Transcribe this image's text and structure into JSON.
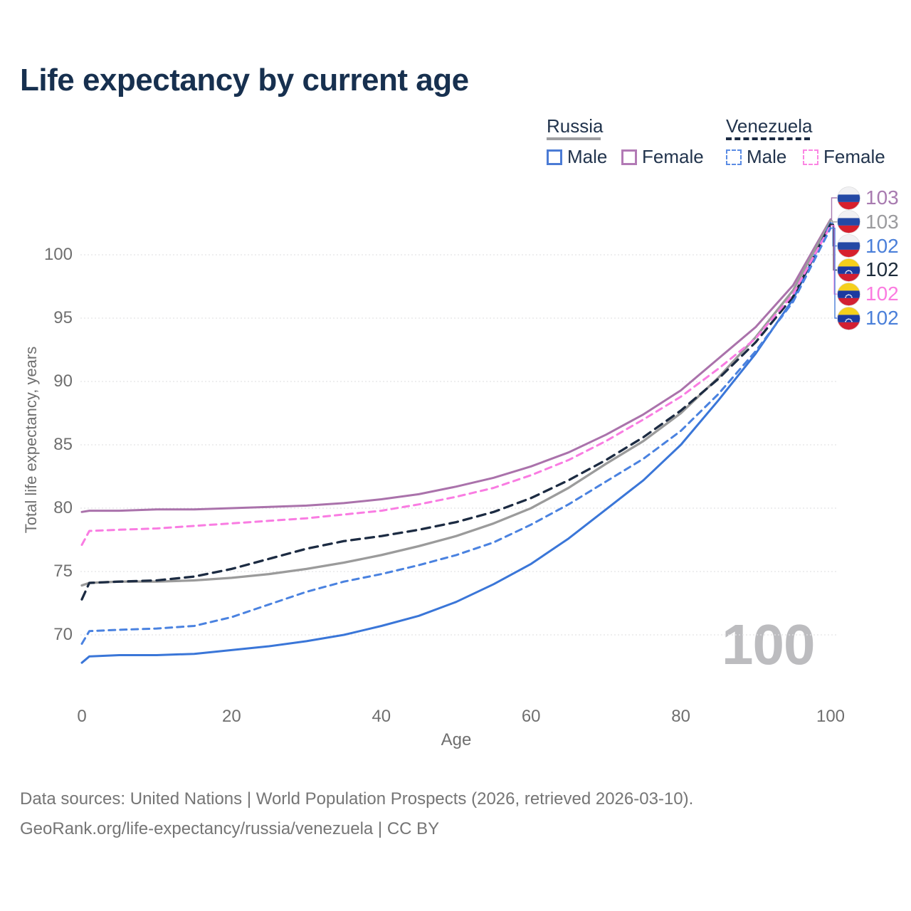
{
  "title": "Life expectancy by current age",
  "legend": {
    "groups": [
      {
        "label": "Russia",
        "line_style": "solid",
        "line_color": "#9e9ea1",
        "items": [
          {
            "label": "Male",
            "color": "#4b7bd5"
          },
          {
            "label": "Female",
            "color": "#b27ab5"
          }
        ]
      },
      {
        "label": "Venezuela",
        "line_style": "dashed",
        "line_color": "#1c2b42",
        "items": [
          {
            "label": "Male",
            "color": "#5b8ce4"
          },
          {
            "label": "Female",
            "color": "#fb86e3"
          }
        ]
      }
    ]
  },
  "chart_data": {
    "type": "line",
    "title": "Life expectancy by current age",
    "xlabel": "Age",
    "ylabel": "Total life expectancy, years",
    "x_ticks": [
      0,
      20,
      40,
      60,
      80,
      100
    ],
    "y_ticks": [
      70,
      75,
      80,
      85,
      90,
      95,
      100
    ],
    "xlim": [
      0,
      100
    ],
    "ylim": [
      66,
      104
    ],
    "grid": "horizontal",
    "age_watermark": "100",
    "ages": [
      0,
      1,
      5,
      10,
      15,
      20,
      25,
      30,
      35,
      40,
      45,
      50,
      55,
      60,
      65,
      70,
      75,
      80,
      85,
      90,
      95,
      100
    ],
    "series": [
      {
        "name": "Russia Female",
        "country": "Russia",
        "sex": "Female",
        "color": "#aa72ab",
        "dash": false,
        "end_label": "103",
        "values": [
          79.7,
          79.8,
          79.8,
          79.9,
          79.9,
          80.0,
          80.1,
          80.2,
          80.4,
          80.7,
          81.1,
          81.7,
          82.4,
          83.3,
          84.4,
          85.8,
          87.4,
          89.3,
          91.8,
          94.3,
          97.6,
          102.8
        ]
      },
      {
        "name": "Russia",
        "country": "Russia",
        "sex": "Both",
        "color": "#9b9b9b",
        "dash": false,
        "end_label": "103",
        "values": [
          73.9,
          74.1,
          74.2,
          74.2,
          74.3,
          74.5,
          74.8,
          75.2,
          75.7,
          76.3,
          77.0,
          77.8,
          78.8,
          80.0,
          81.6,
          83.5,
          85.3,
          87.5,
          90.3,
          93.5,
          97.2,
          102.7
        ]
      },
      {
        "name": "Russia Male",
        "country": "Russia",
        "sex": "Male",
        "color": "#3a76d8",
        "dash": false,
        "end_label": "102",
        "values": [
          67.8,
          68.3,
          68.4,
          68.4,
          68.5,
          68.8,
          69.1,
          69.5,
          70.0,
          70.7,
          71.5,
          72.6,
          74.0,
          75.6,
          77.6,
          79.9,
          82.2,
          85.0,
          88.5,
          92.2,
          96.5,
          102.5
        ]
      },
      {
        "name": "Venezuela",
        "country": "Venezuela",
        "sex": "Both",
        "color": "#1c2b42",
        "dash": true,
        "end_label": "102",
        "values": [
          72.8,
          74.1,
          74.2,
          74.3,
          74.6,
          75.2,
          76.0,
          76.8,
          77.4,
          77.8,
          78.3,
          78.9,
          79.7,
          80.8,
          82.2,
          83.8,
          85.6,
          87.7,
          90.2,
          93.1,
          96.7,
          102.4
        ]
      },
      {
        "name": "Venezuela Female",
        "country": "Venezuela",
        "sex": "Female",
        "color": "#f97ce2",
        "dash": true,
        "end_label": "102",
        "values": [
          77.1,
          78.2,
          78.3,
          78.4,
          78.6,
          78.8,
          79.0,
          79.2,
          79.5,
          79.8,
          80.3,
          80.9,
          81.6,
          82.6,
          83.8,
          85.3,
          87.0,
          88.8,
          91.0,
          93.4,
          96.9,
          102.3
        ]
      },
      {
        "name": "Venezuela Male",
        "country": "Venezuela",
        "sex": "Male",
        "color": "#4a82e0",
        "dash": true,
        "end_label": "102",
        "values": [
          69.3,
          70.3,
          70.4,
          70.5,
          70.7,
          71.4,
          72.4,
          73.4,
          74.2,
          74.8,
          75.5,
          76.3,
          77.3,
          78.7,
          80.3,
          82.1,
          83.9,
          86.1,
          89.0,
          92.4,
          96.3,
          102.1
        ]
      }
    ],
    "end_labels": [
      {
        "value": "103",
        "color": "#a87bb0",
        "flag": "russia",
        "series": "Russia Female"
      },
      {
        "value": "103",
        "color": "#9b9b9e",
        "flag": "russia",
        "series": "Russia"
      },
      {
        "value": "102",
        "color": "#4a7fd9",
        "flag": "russia",
        "series": "Russia Male"
      },
      {
        "value": "102",
        "color": "#1c2b3a",
        "flag": "venezuela",
        "series": "Venezuela"
      },
      {
        "value": "102",
        "color": "#fb7be0",
        "flag": "venezuela",
        "series": "Venezuela Female"
      },
      {
        "value": "102",
        "color": "#4a7fd9",
        "flag": "venezuela",
        "series": "Venezuela Male"
      }
    ]
  },
  "footer": {
    "line1": "Data sources: United Nations | World Population Prospects (2026, retrieved 2026-03-10).",
    "line2": "GeoRank.org/life-expectancy/russia/venezuela | CC BY"
  }
}
